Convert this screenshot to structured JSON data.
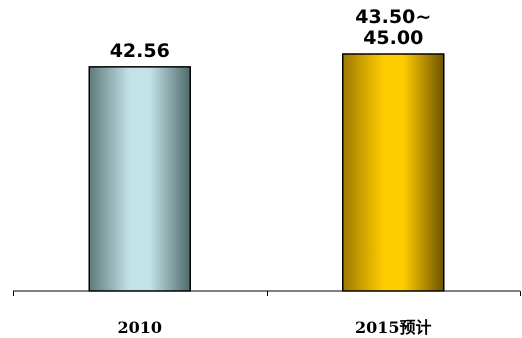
{
  "chart_data": {
    "type": "bar",
    "categories": [
      "2010",
      "2015预计"
    ],
    "values": [
      42.56,
      45.0
    ],
    "value_ranges": [
      null,
      [
        43.5,
        45.0
      ]
    ],
    "data_labels": [
      [
        "42.56"
      ],
      [
        "43.50~",
        "45.00"
      ]
    ],
    "title": "",
    "xlabel": "",
    "ylabel": "",
    "ylim": [
      0,
      45
    ],
    "grid": false,
    "legend": "none",
    "bar_colors": [
      {
        "edge": "#5f7a7c",
        "light": "#c3e3e7",
        "dark": "#4f6a6c"
      },
      {
        "edge": "#9c7800",
        "light": "#ffcc00",
        "dark": "#6e5200"
      }
    ],
    "axis_color": "#000000",
    "bar_stroke": "#000000"
  }
}
